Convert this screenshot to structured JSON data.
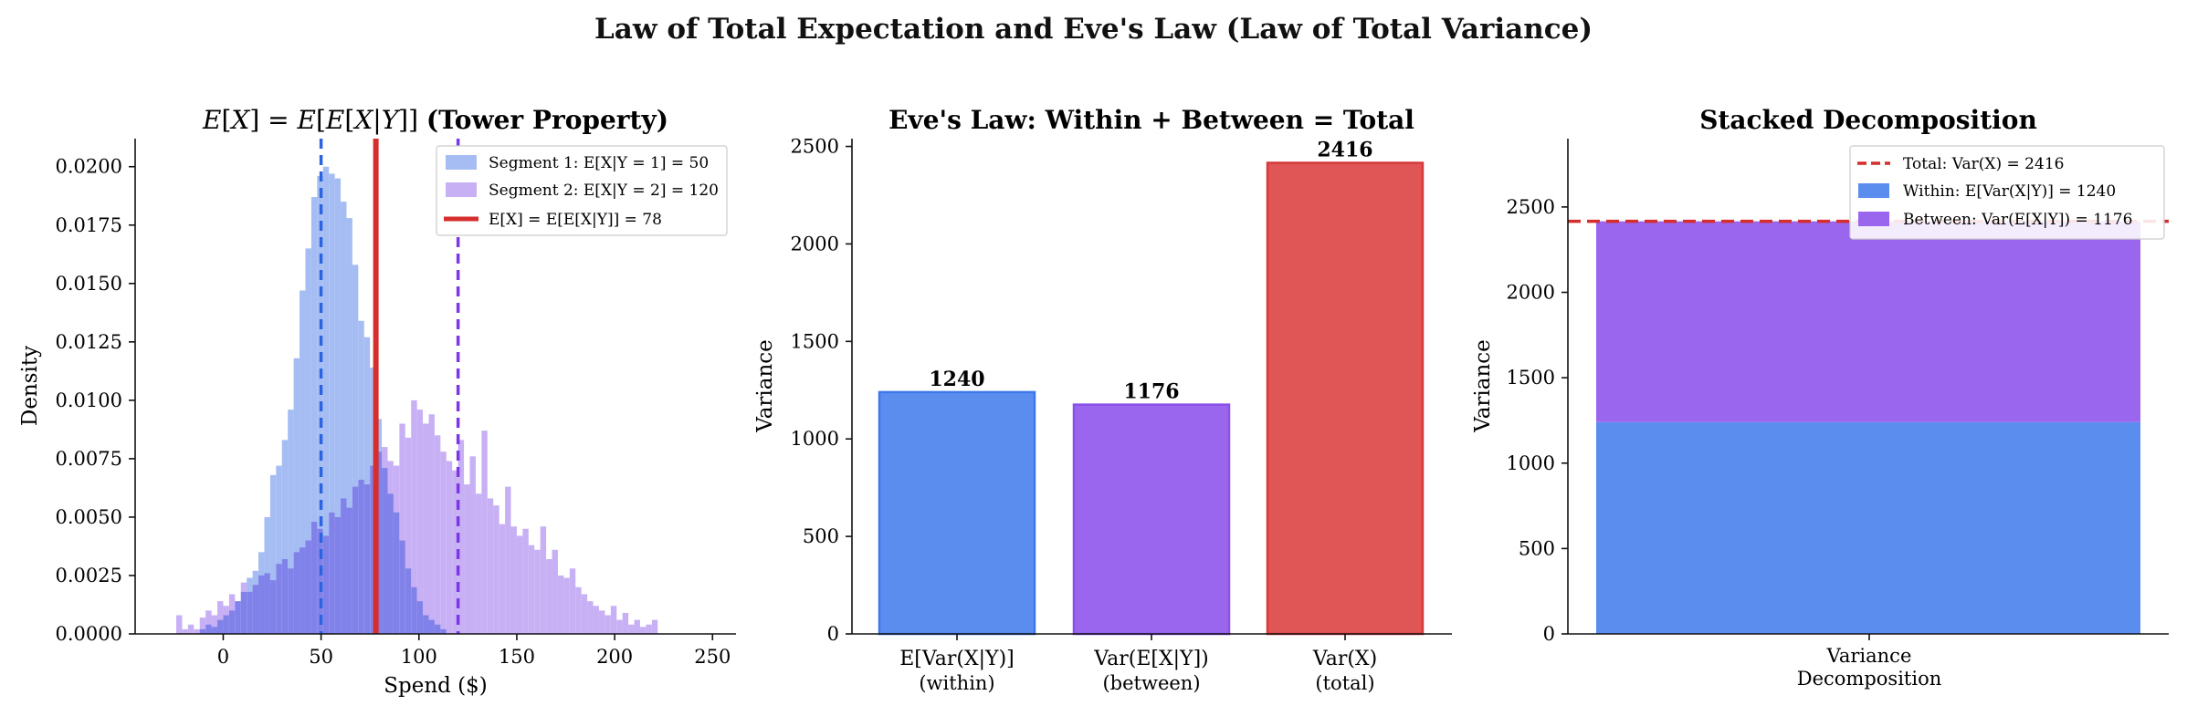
{
  "figure": {
    "suptitle": "Law of Total Expectation and Eve's Law (Law of Total Variance)"
  },
  "colors": {
    "segment1": "#5b8def",
    "segment2": "#9b66ee",
    "total": "#d62d2d",
    "total_bar": "#e05555",
    "segment1_hist": "#a5bdf3",
    "segment2_hist": "#c8b0f5"
  },
  "chart_data": [
    {
      "type": "bar",
      "subtype": "histogram",
      "title": "E[X] = E[E[X|Y]] (Tower Property)",
      "xlabel": "Spend ($)",
      "ylabel": "Density",
      "xlim": [
        -45,
        262
      ],
      "ylim": [
        0,
        0.0212
      ],
      "xticks": [
        "0",
        "50",
        "100",
        "150",
        "200",
        "250"
      ],
      "yticks": [
        "0.0000",
        "0.0025",
        "0.0050",
        "0.0075",
        "0.0100",
        "0.0125",
        "0.0150",
        "0.0175",
        "0.0200"
      ],
      "legend_position": "top-right",
      "legend": [
        "Segment 1: E[X|Y = 1] = 50",
        "Segment 2: E[X|Y = 2] = 120",
        "E[X] = E[E[X|Y]] = 78"
      ],
      "grid": false,
      "bin_width": 3,
      "series": [
        {
          "name": "Segment 1: E[X|Y = 1] = 50",
          "bin_start": -12,
          "values": [
            0.0002,
            0.0004,
            0.0003,
            0.0006,
            0.0008,
            0.001,
            0.0014,
            0.0018,
            0.0024,
            0.0027,
            0.0035,
            0.005,
            0.0068,
            0.0072,
            0.0083,
            0.0096,
            0.0118,
            0.0147,
            0.0165,
            0.0187,
            0.0196,
            0.02,
            0.0197,
            0.0195,
            0.0185,
            0.0178,
            0.0158,
            0.0134,
            0.0127,
            0.0114,
            0.0092,
            0.0071,
            0.006,
            0.0052,
            0.004,
            0.0028,
            0.002,
            0.0014,
            0.0008,
            0.0006,
            0.0004,
            0.0002
          ]
        },
        {
          "name": "Segment 2: E[X|Y = 2] = 120",
          "bin_start": -24,
          "values": [
            0.0008,
            0.0002,
            0.0004,
            0.0002,
            0.0007,
            0.001,
            0.0008,
            0.0014,
            0.0012,
            0.0017,
            0.0014,
            0.0022,
            0.0018,
            0.0021,
            0.0025,
            0.0026,
            0.0023,
            0.003,
            0.0032,
            0.0028,
            0.0035,
            0.0037,
            0.004,
            0.0048,
            0.0045,
            0.0042,
            0.0052,
            0.005,
            0.0058,
            0.0054,
            0.0063,
            0.0066,
            0.0064,
            0.0072,
            0.0078,
            0.008,
            0.0074,
            0.0072,
            0.009,
            0.0084,
            0.01,
            0.0096,
            0.009,
            0.0094,
            0.0085,
            0.0078,
            0.0074,
            0.007,
            0.0083,
            0.0064,
            0.0076,
            0.006,
            0.0087,
            0.0058,
            0.0055,
            0.0047,
            0.0063,
            0.0046,
            0.0042,
            0.0045,
            0.0038,
            0.0036,
            0.0046,
            0.0032,
            0.0036,
            0.0025,
            0.0024,
            0.0028,
            0.002,
            0.0017,
            0.0014,
            0.0012,
            0.001,
            0.0008,
            0.0012,
            0.0006,
            0.0009,
            0.0004,
            0.0006,
            0.0003,
            0.0004,
            0.0006
          ]
        }
      ],
      "vlines": [
        {
          "x": 50,
          "style": "dashed",
          "color": "#2b63e0"
        },
        {
          "x": 120,
          "style": "dashed",
          "color": "#7b38e6"
        },
        {
          "x": 78,
          "style": "solid",
          "color": "#d62d2d"
        }
      ]
    },
    {
      "type": "bar",
      "title": "Eve's Law: Within + Between = Total",
      "ylabel": "Variance",
      "ylim": [
        0,
        2540
      ],
      "yticks": [
        "0",
        "500",
        "1000",
        "1500",
        "2000",
        "2500"
      ],
      "categories": [
        {
          "line1": "E[Var(X|Y)]",
          "line2": "(within)"
        },
        {
          "line1": "Var(E[X|Y])",
          "line2": "(between)"
        },
        {
          "line1": "Var(X)",
          "line2": "(total)"
        }
      ],
      "values": [
        1240,
        1176,
        2416
      ],
      "value_labels": [
        "1240",
        "1176",
        "2416"
      ],
      "grid": false
    },
    {
      "type": "bar",
      "subtype": "stacked",
      "title": "Stacked Decomposition",
      "ylabel": "Variance",
      "xlabel_lines": [
        "Variance",
        "Decomposition"
      ],
      "ylim": [
        0,
        2900
      ],
      "yticks": [
        "0",
        "500",
        "1000",
        "1500",
        "2000",
        "2500"
      ],
      "series": [
        {
          "name": "Within: E[Var(X|Y)] = 1240",
          "value": 1240
        },
        {
          "name": "Between: Var(E[X|Y]) = 1176",
          "value": 1176
        }
      ],
      "hline": {
        "name": "Total: Var(X) = 2416",
        "value": 2416,
        "style": "dashed"
      },
      "legend_position": "top-right",
      "legend": [
        "Total: Var(X) = 2416",
        "Within: E[Var(X|Y)] = 1240",
        "Between: Var(E[X|Y]) = 1176"
      ],
      "grid": false
    }
  ]
}
